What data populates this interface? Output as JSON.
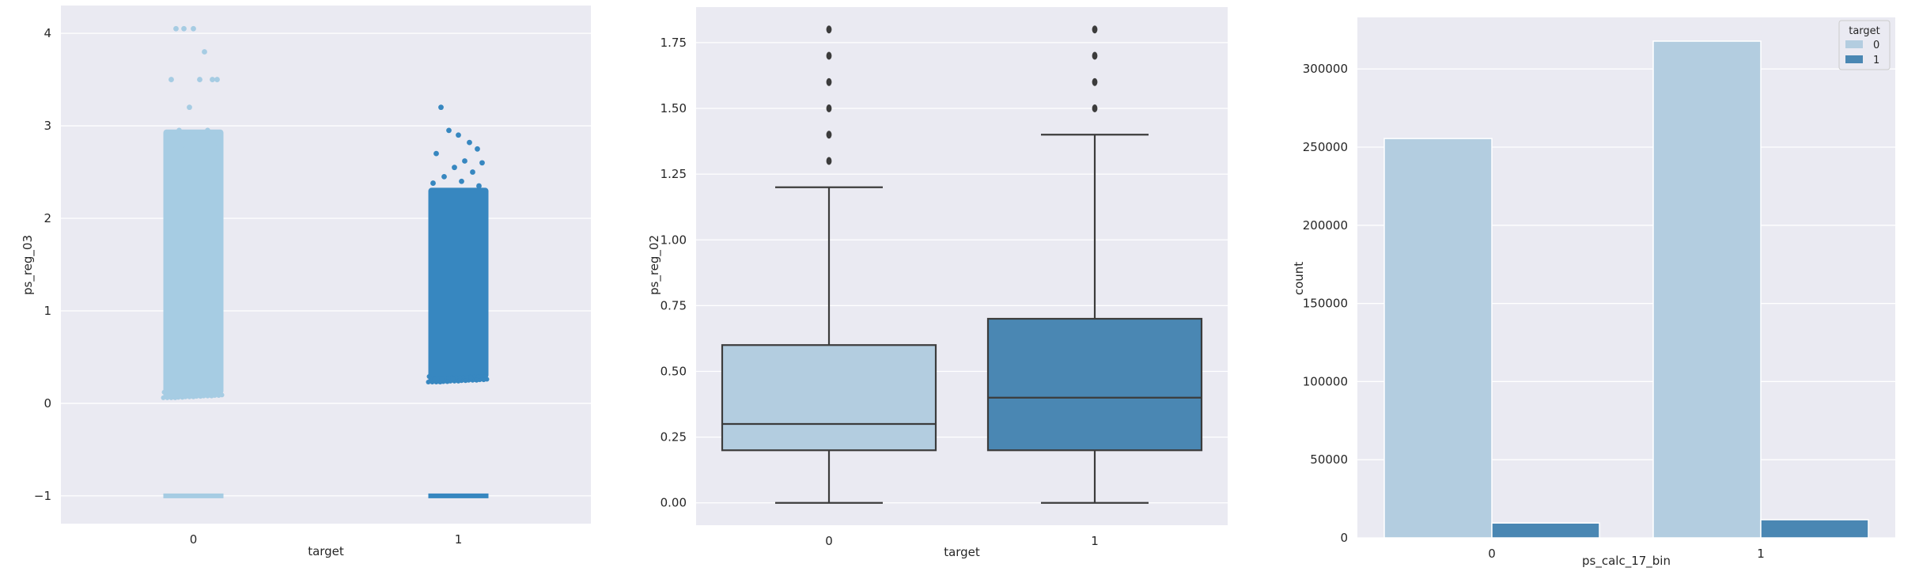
{
  "chart_data": [
    {
      "type": "strip",
      "xlabel": "target",
      "ylabel": "ps_reg_03",
      "categories": [
        "0",
        "1"
      ],
      "ylim": [
        -1.3,
        4.3
      ],
      "yticks": [
        -1,
        0,
        1,
        2,
        3,
        4
      ],
      "grid": true,
      "colors": [
        "#a6cce3",
        "#3787c0"
      ],
      "series": [
        {
          "category": "0",
          "dense_range": [
            0.1,
            2.96
          ],
          "cluster_value": -1,
          "outliers": [
            4.05,
            4.05,
            4.05,
            3.8,
            3.5,
            3.5,
            3.5,
            3.5,
            3.2,
            2.95,
            2.95,
            2.9,
            2.85,
            2.8,
            2.75,
            2.7
          ]
        },
        {
          "category": "1",
          "dense_range": [
            0.27,
            2.33
          ],
          "cluster_value": -1,
          "outliers": [
            3.2,
            2.95,
            2.9,
            2.82,
            2.75,
            2.7,
            2.62,
            2.6,
            2.55,
            2.5,
            2.45,
            2.4,
            2.38,
            2.35
          ]
        }
      ]
    },
    {
      "type": "box",
      "xlabel": "target",
      "ylabel": "ps_reg_02",
      "categories": [
        "0",
        "1"
      ],
      "ylim": [
        -0.085,
        1.885
      ],
      "yticks": [
        "0.00",
        "0.25",
        "0.50",
        "0.75",
        "1.00",
        "1.25",
        "1.50",
        "1.75"
      ],
      "grid": true,
      "colors": [
        "#b3cde0",
        "#4a87b3"
      ],
      "boxes": [
        {
          "category": "0",
          "whislo": 0.0,
          "q1": 0.2,
          "median": 0.3,
          "q3": 0.6,
          "whishi": 1.2,
          "fliers": [
            1.3,
            1.4,
            1.5,
            1.6,
            1.7,
            1.8
          ]
        },
        {
          "category": "1",
          "whislo": 0.0,
          "q1": 0.2,
          "median": 0.4,
          "q3": 0.7,
          "whishi": 1.4,
          "fliers": [
            1.5,
            1.6,
            1.7,
            1.8
          ]
        }
      ]
    },
    {
      "type": "bar",
      "xlabel": "ps_calc_17_bin",
      "ylabel": "count",
      "categories": [
        "0",
        "1"
      ],
      "ylim": [
        0,
        333000
      ],
      "yticks": [
        0,
        50000,
        100000,
        150000,
        200000,
        250000,
        300000
      ],
      "grid": true,
      "legend": {
        "title": "target",
        "placement": "top-right"
      },
      "series": [
        {
          "name": "0",
          "values": [
            255500,
            317800
          ],
          "color": "#b3cde0"
        },
        {
          "name": "1",
          "values": [
            9500,
            11600
          ],
          "color": "#4a87b3"
        }
      ]
    }
  ]
}
